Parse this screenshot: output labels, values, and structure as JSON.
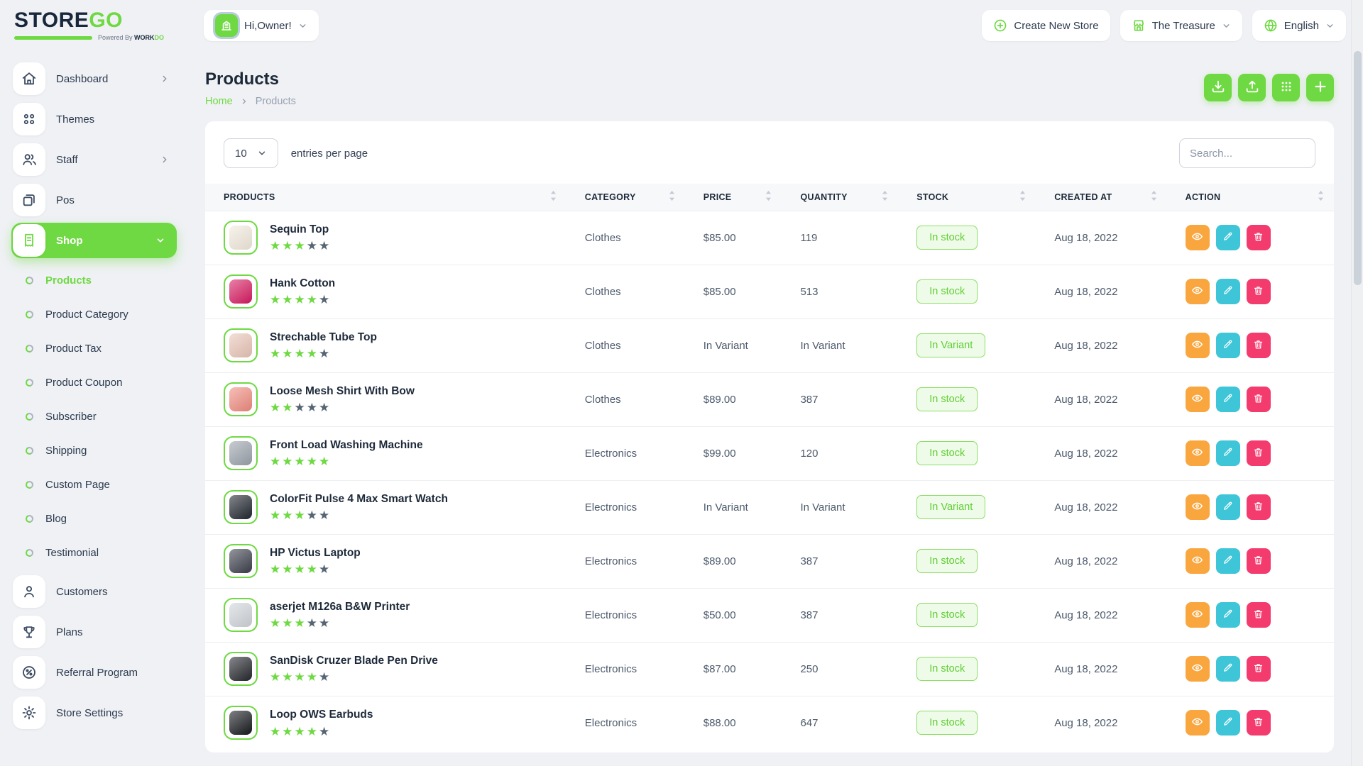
{
  "brand": {
    "name_primary": "STORE",
    "name_secondary": "GO",
    "powered_by": "Powered By",
    "powered_work": "WORK",
    "powered_do": "DO"
  },
  "colors": {
    "accent_green": "#6fd943",
    "badge_bg": "#effbe9",
    "badge_text": "#5fce33",
    "action_view": "#f9a63f",
    "action_edit": "#3ec6d8",
    "action_delete": "#f43b6d",
    "star_filled": "#6fd943",
    "star_empty": "#566573"
  },
  "header": {
    "greeting": "Hi,Owner!",
    "create_store": "Create New Store",
    "store_name": "The Treasure",
    "language": "English"
  },
  "sidebar": {
    "main_items": [
      {
        "label": "Dashboard",
        "icon": "home",
        "chevron": "right",
        "active": false
      },
      {
        "label": "Themes",
        "icon": "grid",
        "chevron": "",
        "active": false
      },
      {
        "label": "Staff",
        "icon": "users",
        "chevron": "right",
        "active": false
      },
      {
        "label": "Pos",
        "icon": "pos",
        "chevron": "",
        "active": false
      },
      {
        "label": "Shop",
        "icon": "receipt",
        "chevron": "down",
        "active": true
      }
    ],
    "shop_submenu": [
      {
        "label": "Products",
        "active": true
      },
      {
        "label": "Product Category",
        "active": false
      },
      {
        "label": "Product Tax",
        "active": false
      },
      {
        "label": "Product Coupon",
        "active": false
      },
      {
        "label": "Subscriber",
        "active": false
      },
      {
        "label": "Shipping",
        "active": false
      },
      {
        "label": "Custom Page",
        "active": false
      },
      {
        "label": "Blog",
        "active": false
      },
      {
        "label": "Testimonial",
        "active": false
      }
    ],
    "bottom_items": [
      {
        "label": "Customers",
        "icon": "user",
        "chevron": "",
        "active": false
      },
      {
        "label": "Plans",
        "icon": "trophy",
        "chevron": "",
        "active": false
      },
      {
        "label": "Referral Program",
        "icon": "percent",
        "chevron": "",
        "active": false
      },
      {
        "label": "Store Settings",
        "icon": "gear",
        "chevron": "",
        "active": false
      }
    ]
  },
  "page": {
    "title": "Products",
    "breadcrumb_home": "Home",
    "breadcrumb_current": "Products"
  },
  "toolbar": {
    "buttons": [
      {
        "name": "import-button",
        "icon": "download"
      },
      {
        "name": "export-button",
        "icon": "upload"
      },
      {
        "name": "grid-view-button",
        "icon": "grid-dots"
      },
      {
        "name": "add-product-button",
        "icon": "plus"
      }
    ]
  },
  "table": {
    "entries_value": "10",
    "entries_label": "entries per page",
    "search_placeholder": "Search...",
    "columns": [
      {
        "label": "Products"
      },
      {
        "label": "Category"
      },
      {
        "label": "Price"
      },
      {
        "label": "Quantity"
      },
      {
        "label": "Stock"
      },
      {
        "label": "Created At"
      },
      {
        "label": "Action"
      }
    ],
    "rows": [
      {
        "name": "Sequin Top",
        "rating": 3,
        "category": "Clothes",
        "price": "$85.00",
        "quantity": "119",
        "stock": "In stock",
        "created": "Aug 18, 2022",
        "thumb_color": "#f1e9dc"
      },
      {
        "name": "Hank Cotton",
        "rating": 4,
        "category": "Clothes",
        "price": "$85.00",
        "quantity": "513",
        "stock": "In stock",
        "created": "Aug 18, 2022",
        "thumb_color": "#d6195f"
      },
      {
        "name": "Strechable Tube Top",
        "rating": 4,
        "category": "Clothes",
        "price": "In Variant",
        "quantity": "In Variant",
        "stock": "In Variant",
        "created": "Aug 18, 2022",
        "thumb_color": "#e9c4b6"
      },
      {
        "name": "Loose Mesh Shirt With Bow",
        "rating": 2,
        "category": "Clothes",
        "price": "$89.00",
        "quantity": "387",
        "stock": "In stock",
        "created": "Aug 18, 2022",
        "thumb_color": "#ef8a7e"
      },
      {
        "name": "Front Load Washing Machine",
        "rating": 5,
        "category": "Electronics",
        "price": "$99.00",
        "quantity": "120",
        "stock": "In stock",
        "created": "Aug 18, 2022",
        "thumb_color": "#9aa2ab"
      },
      {
        "name": "ColorFit Pulse 4 Max Smart Watch",
        "rating": 3,
        "category": "Electronics",
        "price": "In Variant",
        "quantity": "In Variant",
        "stock": "In Variant",
        "created": "Aug 18, 2022",
        "thumb_color": "#20262e"
      },
      {
        "name": "HP Victus Laptop",
        "rating": 4,
        "category": "Electronics",
        "price": "$89.00",
        "quantity": "387",
        "stock": "In stock",
        "created": "Aug 18, 2022",
        "thumb_color": "#3b3f4a"
      },
      {
        "name": "aserjet M126a B&W Printer",
        "rating": 3,
        "category": "Electronics",
        "price": "$50.00",
        "quantity": "387",
        "stock": "In stock",
        "created": "Aug 18, 2022",
        "thumb_color": "#cfd4d9"
      },
      {
        "name": "SanDisk Cruzer Blade Pen Drive",
        "rating": 4,
        "category": "Electronics",
        "price": "$87.00",
        "quantity": "250",
        "stock": "In stock",
        "created": "Aug 18, 2022",
        "thumb_color": "#23262b"
      },
      {
        "name": "Loop OWS Earbuds",
        "rating": 4,
        "category": "Electronics",
        "price": "$88.00",
        "quantity": "647",
        "stock": "In stock",
        "created": "Aug 18, 2022",
        "thumb_color": "#15181c"
      }
    ]
  }
}
